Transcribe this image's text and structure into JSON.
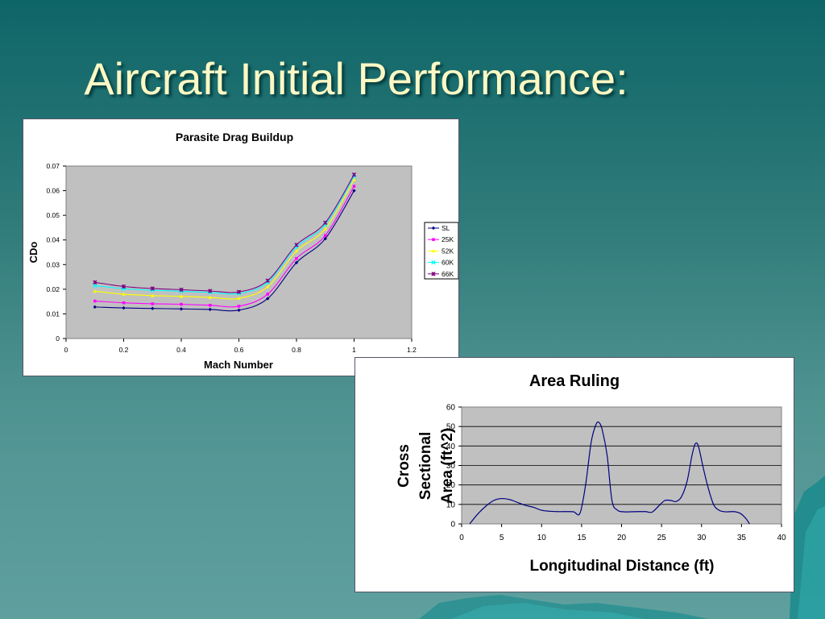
{
  "slide": {
    "title": "Aircraft Initial Performance:"
  },
  "chart_data": [
    {
      "type": "line",
      "title": "Parasite Drag Buildup",
      "xlabel": "Mach Number",
      "ylabel": "CDo",
      "xlim": [
        0,
        1.2
      ],
      "ylim": [
        0,
        0.07
      ],
      "xticks": [
        "0",
        "0.2",
        "0.4",
        "0.6",
        "0.8",
        "1",
        "1.2"
      ],
      "yticks": [
        "0",
        "0.01",
        "0.02",
        "0.03",
        "0.04",
        "0.05",
        "0.06",
        "0.07"
      ],
      "grid": false,
      "legend": "right",
      "plot_background": "#c0c0c0",
      "series": [
        {
          "name": "SL",
          "color": "#000080",
          "marker": "diamond",
          "x": [
            0.1,
            0.2,
            0.3,
            0.4,
            0.5,
            0.6,
            0.7,
            0.8,
            0.9,
            1.0
          ],
          "y": [
            0.0128,
            0.0124,
            0.0122,
            0.012,
            0.0118,
            0.0115,
            0.0162,
            0.0308,
            0.0405,
            0.06
          ]
        },
        {
          "name": "25K",
          "color": "#ff00ff",
          "marker": "square",
          "x": [
            0.1,
            0.2,
            0.3,
            0.4,
            0.5,
            0.6,
            0.7,
            0.8,
            0.9,
            1.0
          ],
          "y": [
            0.0152,
            0.0145,
            0.0141,
            0.0139,
            0.0135,
            0.0131,
            0.018,
            0.0325,
            0.0418,
            0.0618
          ]
        },
        {
          "name": "52K",
          "color": "#ffff00",
          "marker": "triangle",
          "x": [
            0.1,
            0.2,
            0.3,
            0.4,
            0.5,
            0.6,
            0.7,
            0.8,
            0.9,
            1.0
          ],
          "y": [
            0.0192,
            0.018,
            0.0174,
            0.0171,
            0.0167,
            0.0163,
            0.021,
            0.0355,
            0.0445,
            0.0645
          ]
        },
        {
          "name": "60K",
          "color": "#00ffff",
          "marker": "x",
          "x": [
            0.1,
            0.2,
            0.3,
            0.4,
            0.5,
            0.6,
            0.7,
            0.8,
            0.9,
            1.0
          ],
          "y": [
            0.0215,
            0.0202,
            0.0196,
            0.0192,
            0.0187,
            0.0183,
            0.0228,
            0.0372,
            0.0462,
            0.0658
          ]
        },
        {
          "name": "66K",
          "color": "#800080",
          "marker": "star",
          "x": [
            0.1,
            0.2,
            0.3,
            0.4,
            0.5,
            0.6,
            0.7,
            0.8,
            0.9,
            1.0
          ],
          "y": [
            0.0228,
            0.0211,
            0.0203,
            0.0198,
            0.0193,
            0.0189,
            0.0235,
            0.038,
            0.047,
            0.0665
          ]
        }
      ]
    },
    {
      "type": "line",
      "title": "Area Ruling",
      "xlabel": "Longitudinal Distance (ft)",
      "ylabel_lines": [
        "Cross",
        "Sectional",
        "Area (ft^2)"
      ],
      "xlim": [
        0,
        40
      ],
      "ylim": [
        0,
        60
      ],
      "xticks": [
        "0",
        "5",
        "10",
        "15",
        "20",
        "25",
        "30",
        "35",
        "40"
      ],
      "yticks": [
        "0",
        "10",
        "20",
        "30",
        "40",
        "50",
        "60"
      ],
      "grid": true,
      "plot_background": "#c0c0c0",
      "series": [
        {
          "color": "#000080",
          "x": [
            1,
            2,
            3,
            4,
            5,
            6,
            7,
            8,
            9,
            10,
            11,
            12,
            13,
            14,
            14.8,
            15.5,
            16.2,
            16.8,
            17.2,
            17.6,
            18.2,
            18.8,
            19.5,
            20.3,
            21,
            22,
            23,
            23.8,
            24.6,
            25.4,
            26.2,
            26.8,
            27.5,
            28.2,
            28.8,
            29.2,
            29.6,
            30.2,
            30.8,
            31.5,
            32.2,
            33,
            34,
            34.8,
            35.5,
            36
          ],
          "y": [
            0,
            5,
            9,
            12,
            13,
            12.5,
            11,
            9.5,
            8.5,
            7,
            6.5,
            6.3,
            6.3,
            6.2,
            5.5,
            20,
            42,
            51,
            52,
            48,
            35,
            12,
            7,
            6.2,
            6.2,
            6.3,
            6.3,
            6,
            9,
            12,
            12,
            11.5,
            14,
            22,
            35,
            41,
            40,
            29,
            19,
            10,
            7,
            6.2,
            6.3,
            5.5,
            3,
            0
          ]
        }
      ]
    }
  ]
}
